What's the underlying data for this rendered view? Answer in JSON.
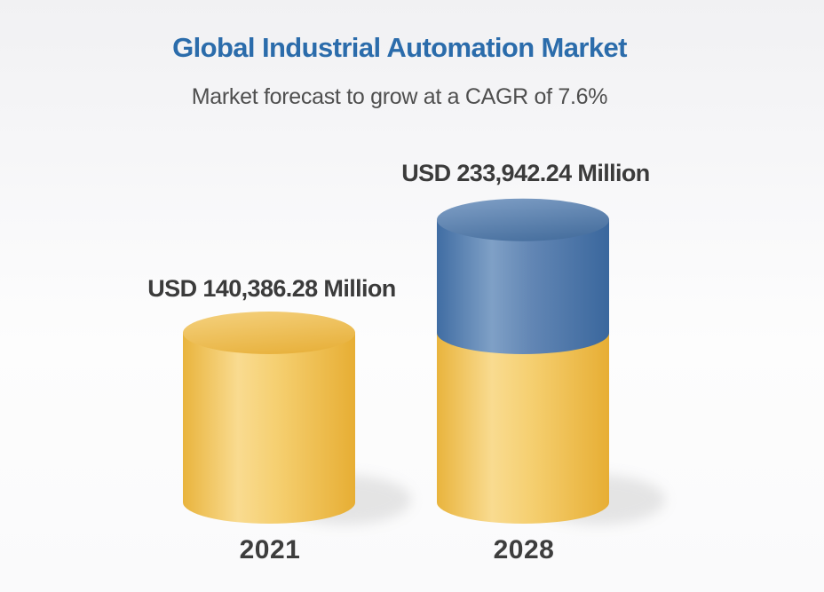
{
  "header": {
    "title": "Global Industrial Automation Market",
    "subtitle": "Market forecast to grow at a CAGR of 7.6%",
    "title_color": "#2b6cab",
    "subtitle_color": "#4f4f4f"
  },
  "chart_data": {
    "type": "bar",
    "variant": "3d-cylinder-stacked",
    "title": "Global Industrial Automation Market",
    "subtitle": "Market forecast to grow at a CAGR of 7.6%",
    "cagr_percent": 7.6,
    "unit": "USD Million",
    "categories": [
      "2021",
      "2028"
    ],
    "values": [
      140386.28,
      233942.24
    ],
    "value_labels": [
      "USD 140,386.28 Million",
      "USD 233,942.24 Million"
    ],
    "bars": [
      {
        "category": "2021",
        "total": 140386.28,
        "label": "USD 140,386.28 Million",
        "segments": [
          {
            "palette": "gold",
            "value": 140386.28
          }
        ]
      },
      {
        "category": "2028",
        "total": 233942.24,
        "label": "USD 233,942.24 Million",
        "segments": [
          {
            "palette": "gold",
            "value": 140386.28
          },
          {
            "palette": "blue",
            "value": 93555.96
          }
        ]
      }
    ],
    "palettes": {
      "gold": {
        "body_stops": [
          [
            0,
            "#e9b43d"
          ],
          [
            0.32,
            "#f9db90"
          ],
          [
            0.55,
            "#f5cf70"
          ],
          [
            1,
            "#e7ae34"
          ]
        ],
        "top_stops": [
          [
            0,
            "#f4d07c"
          ],
          [
            1,
            "#e8b23e"
          ]
        ]
      },
      "blue": {
        "body_stops": [
          [
            0,
            "#406da3"
          ],
          [
            0.32,
            "#7fa0c6"
          ],
          [
            0.55,
            "#6286b4"
          ],
          [
            1,
            "#3a679d"
          ]
        ],
        "top_stops": [
          [
            0,
            "#7e9ec5"
          ],
          [
            1,
            "#48709f"
          ]
        ]
      }
    },
    "legend": false,
    "axes_visible": false,
    "label_color": "#3b3b3b",
    "category_color": "#3d3d3d",
    "shadow_color": "#b0b0b0"
  }
}
